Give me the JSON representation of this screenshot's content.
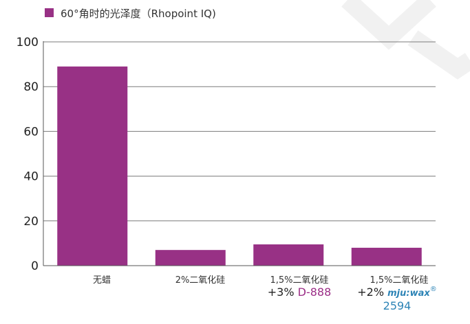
{
  "colors": {
    "bar": "#983185",
    "gridline": "#7a7a7a",
    "axis": "#555555",
    "watermark": "#f1f1f1",
    "d888_text": "#9b2d86",
    "mjuwax_text": "#2d84b6"
  },
  "legend": {
    "label": "60°角时的光泽度（Rhopoint IQ)"
  },
  "chart_data": {
    "type": "bar",
    "categories": [
      "无蜡",
      "2%二氧化硅",
      "1,5%二氧化硅",
      "1,5%二氧化硅"
    ],
    "category_extra": [
      null,
      null,
      {
        "prefix": "+3%",
        "brand": "D-888"
      },
      {
        "prefix": "+2%",
        "brand": "mju:wax",
        "brand_mark": "®",
        "suffix": "2594"
      }
    ],
    "series": [
      {
        "name": "60°角时的光泽度（Rhopoint IQ)",
        "values": [
          89,
          7,
          9.5,
          8
        ]
      }
    ],
    "ylim": [
      0,
      100
    ],
    "yticks": [
      0,
      20,
      40,
      60,
      80,
      100
    ],
    "grid": true,
    "legend_position": "top-left"
  }
}
